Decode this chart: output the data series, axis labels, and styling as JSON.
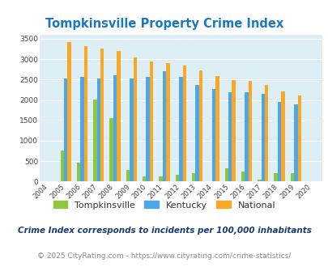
{
  "title": "Tompkinsville Property Crime Index",
  "years": [
    2004,
    2005,
    2006,
    2007,
    2008,
    2009,
    2010,
    2011,
    2012,
    2013,
    2014,
    2015,
    2016,
    2017,
    2018,
    2019,
    2020
  ],
  "tompkinsville": [
    0,
    760,
    470,
    2020,
    1550,
    295,
    120,
    130,
    175,
    205,
    0,
    330,
    245,
    45,
    205,
    205,
    0
  ],
  "kentucky": [
    0,
    2530,
    2560,
    2530,
    2600,
    2530,
    2560,
    2700,
    2560,
    2370,
    2260,
    2185,
    2185,
    2145,
    1960,
    1900,
    0
  ],
  "national": [
    0,
    3415,
    3330,
    3260,
    3210,
    3040,
    2950,
    2900,
    2840,
    2720,
    2590,
    2490,
    2460,
    2370,
    2210,
    2110,
    0
  ],
  "tompkinsville_color": "#8dc63f",
  "kentucky_color": "#4da6e8",
  "national_color": "#f9a825",
  "bg_color": "#ddeef5",
  "grid_color": "#ffffff",
  "title_color": "#1a78c2",
  "footer_color": "#888888",
  "subtitle_color": "#1a3c6e",
  "ylim": [
    0,
    3600
  ],
  "yticks": [
    0,
    500,
    1000,
    1500,
    2000,
    2500,
    3000,
    3500
  ],
  "subtitle": "Crime Index corresponds to incidents per 100,000 inhabitants",
  "footer": "© 2025 CityRating.com - https://www.cityrating.com/crime-statistics/",
  "bar_width": 0.22,
  "figwidth": 4.06,
  "figheight": 3.3,
  "dpi": 100
}
